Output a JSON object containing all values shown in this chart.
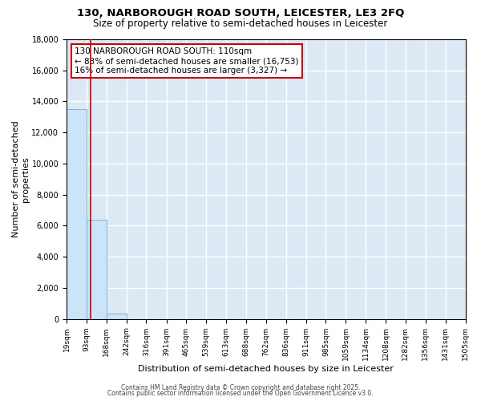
{
  "title": "130, NARBOROUGH ROAD SOUTH, LEICESTER, LE3 2FQ",
  "subtitle": "Size of property relative to semi-detached houses in Leicester",
  "xlabel": "Distribution of semi-detached houses by size in Leicester",
  "ylabel": "Number of semi-detached\nproperties",
  "annotation_line1": "130 NARBOROUGH ROAD SOUTH: 110sqm",
  "annotation_line2": "← 83% of semi-detached houses are smaller (16,753)",
  "annotation_line3": "16% of semi-detached houses are larger (3,327) →",
  "bar_edges": [
    19,
    93,
    168,
    242,
    316,
    391,
    465,
    539,
    613,
    688,
    762,
    836,
    911,
    985,
    1059,
    1134,
    1208,
    1282,
    1356,
    1431,
    1505
  ],
  "bar_heights": [
    13500,
    6400,
    350,
    0,
    0,
    0,
    0,
    0,
    0,
    0,
    0,
    0,
    0,
    0,
    0,
    0,
    0,
    0,
    0,
    0
  ],
  "bar_color_light": "#cce4f7",
  "bar_color_edge": "#6aaed6",
  "property_size": 110,
  "vline_color": "#cc0000",
  "ylim": [
    0,
    18000
  ],
  "yticks": [
    0,
    2000,
    4000,
    6000,
    8000,
    10000,
    12000,
    14000,
    16000,
    18000
  ],
  "background_color": "#dce9f5",
  "grid_color": "#ffffff",
  "annotation_box_color": "#ffffff",
  "annotation_border_color": "#cc0000",
  "footer_line1": "Contains HM Land Registry data © Crown copyright and database right 2025.",
  "footer_line2": "Contains public sector information licensed under the Open Government Licence v3.0."
}
